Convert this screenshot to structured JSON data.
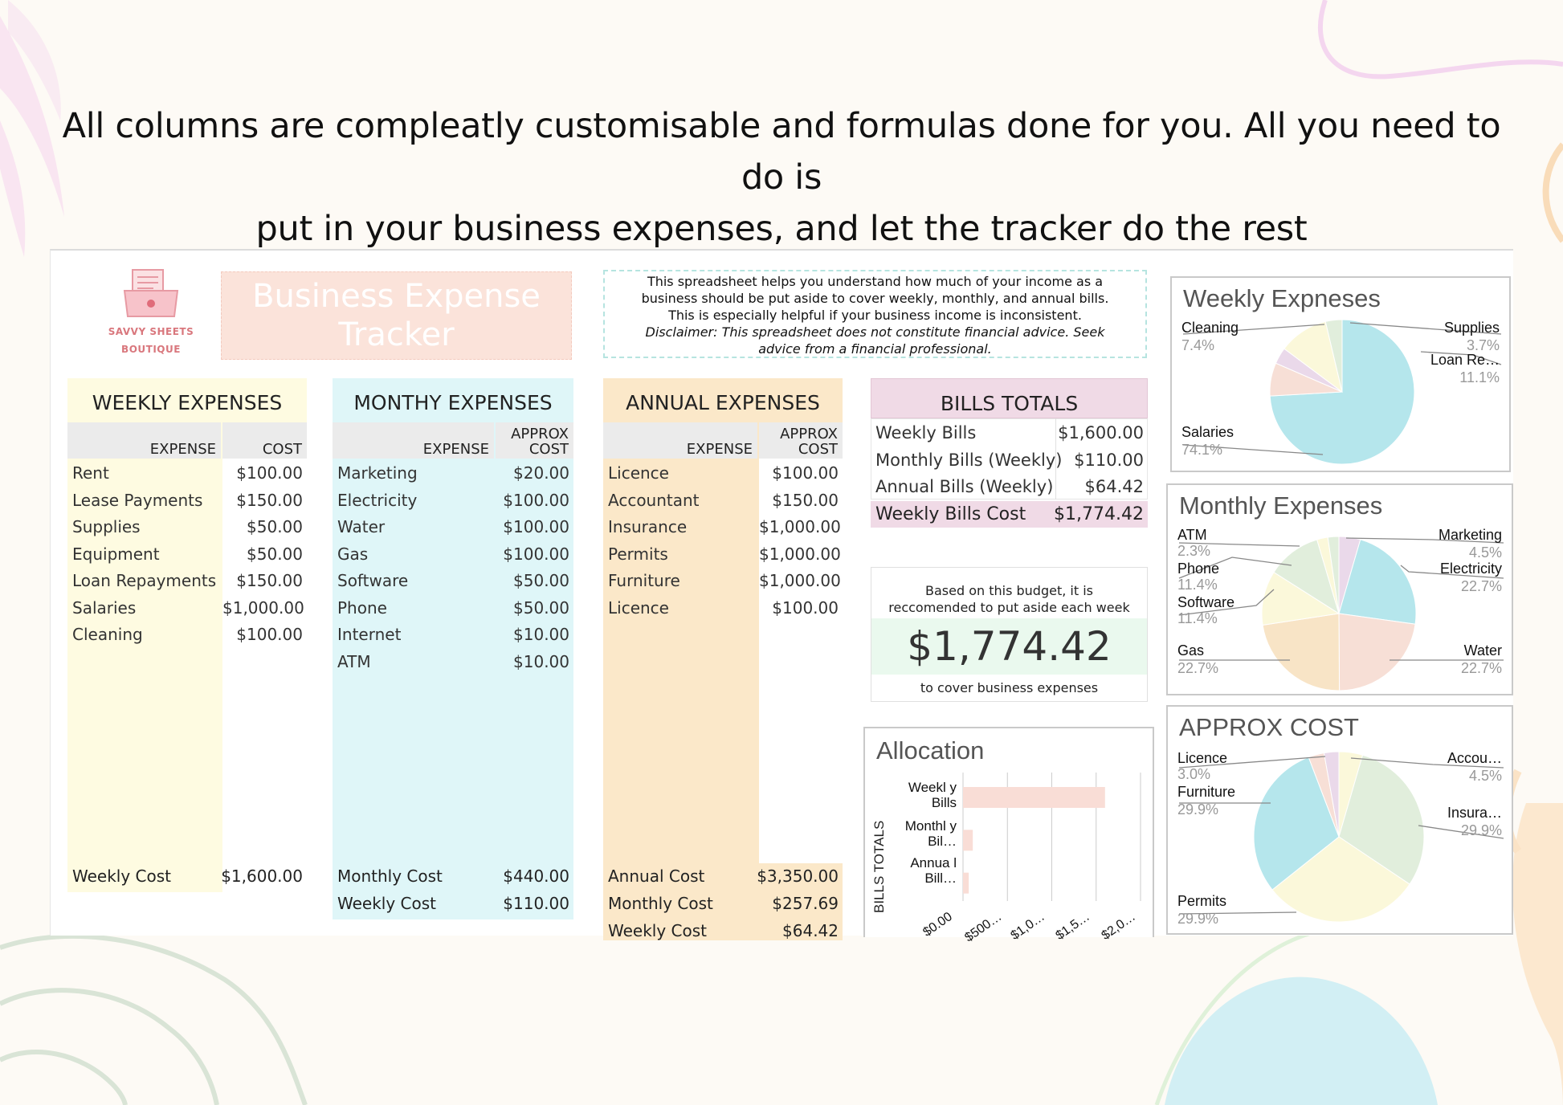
{
  "headline": {
    "line1": "All columns are compleatly customisable and formulas done for you. All you need to do is",
    "line2": "put in your business expenses, and let the tracker do the rest"
  },
  "logo": {
    "line1": "SAVVY SHEETS",
    "line2": "BOUTIQUE"
  },
  "title": {
    "line1": "Business Expense",
    "line2": "Tracker"
  },
  "info": {
    "line1": "This spreadsheet helps you understand how much of your income as a",
    "line2": "business should be put aside to cover weekly, monthly, and annual bills.",
    "line3": "This is especially helpful if your business income is inconsistent.",
    "line4": "Disclaimer: This spreadsheet does not constitute financial advice. Seek",
    "line5": "advice from a financial professional."
  },
  "weekly": {
    "heading": "WEEKLY EXPENSES",
    "col_expense": "EXPENSE",
    "col_cost": "COST",
    "rows": [
      {
        "name": "Rent",
        "cost": "$100.00"
      },
      {
        "name": "Lease Payments",
        "cost": "$150.00"
      },
      {
        "name": "Supplies",
        "cost": "$50.00"
      },
      {
        "name": "Equipment",
        "cost": "$50.00"
      },
      {
        "name": "Loan Repayments",
        "cost": "$150.00"
      },
      {
        "name": "Salaries",
        "cost": "$1,000.00"
      },
      {
        "name": "Cleaning",
        "cost": "$100.00"
      }
    ],
    "total_label": "Weekly Cost",
    "total_value": "$1,600.00",
    "color": "#fefbe1"
  },
  "monthly": {
    "heading": "MONTHY EXPENSES",
    "col_expense": "EXPENSE",
    "col_cost_1": "APPROX",
    "col_cost_2": "COST",
    "rows": [
      {
        "name": "Marketing",
        "cost": "$20.00"
      },
      {
        "name": "Electricity",
        "cost": "$100.00"
      },
      {
        "name": "Water",
        "cost": "$100.00"
      },
      {
        "name": "Gas",
        "cost": "$100.00"
      },
      {
        "name": "Software",
        "cost": "$50.00"
      },
      {
        "name": "Phone",
        "cost": "$50.00"
      },
      {
        "name": "Internet",
        "cost": "$10.00"
      },
      {
        "name": "ATM",
        "cost": "$10.00"
      }
    ],
    "total_label": "Monthly Cost",
    "total_value": "$440.00",
    "weekly_label": "Weekly Cost",
    "weekly_value": "$110.00",
    "color": "#dff6f8"
  },
  "annual": {
    "heading": "ANNUAL EXPENSES",
    "col_expense": "EXPENSE",
    "col_cost_1": "APPROX",
    "col_cost_2": "COST",
    "rows": [
      {
        "name": "Licence",
        "cost": "$100.00"
      },
      {
        "name": "Accountant",
        "cost": "$150.00"
      },
      {
        "name": "Insurance",
        "cost": "$1,000.00"
      },
      {
        "name": "Permits",
        "cost": "$1,000.00"
      },
      {
        "name": "Furniture",
        "cost": "$1,000.00"
      },
      {
        "name": "Licence",
        "cost": "$100.00"
      }
    ],
    "total_label": "Annual Cost",
    "total_value": "$3,350.00",
    "monthly_label": "Monthly Cost",
    "monthly_value": "$257.69",
    "weekly_label": "Weekly Cost",
    "weekly_value": "$64.42",
    "color": "#fbe8c9"
  },
  "bills": {
    "heading": "BILLS TOTALS",
    "rows": [
      {
        "name": "Weekly Bills",
        "value": "$1,600.00"
      },
      {
        "name": "Monthly Bills (Weekly)",
        "value": "$110.00"
      },
      {
        "name": "Annual Bills (Weekly)",
        "value": "$64.42"
      }
    ],
    "total_label": "Weekly Bills Cost",
    "total_value": "$1,774.42"
  },
  "budget": {
    "line1": "Based on this budget, it is",
    "line2": "reccomended to put aside each week",
    "amount": "$1,774.42",
    "line3": "to cover business expenses"
  },
  "chart_data": [
    {
      "type": "bar",
      "title": "Allocation",
      "ylabel": "BILLS TOTALS",
      "categories": [
        "Weekl y Bills",
        "Monthl y Bil…",
        "Annua l Bill…"
      ],
      "values": [
        1600,
        110,
        64.42
      ],
      "xlim": [
        0,
        2000
      ],
      "ticks": [
        "$0.00",
        "$500…",
        "$1,0…",
        "$1,5…",
        "$2,0…"
      ],
      "color": "#f9ddd6",
      "grid": true
    },
    {
      "type": "pie",
      "title": "Weekly Expneses",
      "slices": [
        {
          "label": "Salaries",
          "pct": "74.1%",
          "value": 74.1,
          "color": "#b5e6ec"
        },
        {
          "label": "Cleaning",
          "pct": "7.4%",
          "value": 7.4,
          "color": "#f7dfd6"
        },
        {
          "label": "Supplies",
          "pct": "3.7%",
          "value": 3.7,
          "color": "#ead9ea"
        },
        {
          "label": "Loan Re…",
          "pct": "11.1%",
          "value": 11.1,
          "color": "#fbf8da"
        },
        {
          "label": "",
          "pct": "",
          "value": 3.7,
          "color": "#e1eedc"
        }
      ]
    },
    {
      "type": "pie",
      "title": "Monthly Expenses",
      "slices": [
        {
          "label": "Marketing",
          "pct": "4.5%",
          "value": 4.5,
          "color": "#ead9ea"
        },
        {
          "label": "Electricity",
          "pct": "22.7%",
          "value": 22.7,
          "color": "#b5e6ec"
        },
        {
          "label": "Water",
          "pct": "22.7%",
          "value": 22.7,
          "color": "#f7dfd6"
        },
        {
          "label": "Gas",
          "pct": "22.7%",
          "value": 22.7,
          "color": "#f8e4c6"
        },
        {
          "label": "Software",
          "pct": "11.4%",
          "value": 11.4,
          "color": "#fbf8da"
        },
        {
          "label": "Phone",
          "pct": "11.4%",
          "value": 11.4,
          "color": "#e1eedc"
        },
        {
          "label": "ATM",
          "pct": "2.3%",
          "value": 2.3,
          "color": "#fbf8da"
        },
        {
          "label": "",
          "pct": "",
          "value": 2.3,
          "color": "#e1eedc"
        }
      ]
    },
    {
      "type": "pie",
      "title": "APPROX COST",
      "slices": [
        {
          "label": "Accou…",
          "pct": "4.5%",
          "value": 4.5,
          "color": "#fbf8da"
        },
        {
          "label": "Insura…",
          "pct": "29.9%",
          "value": 29.9,
          "color": "#e1eedc"
        },
        {
          "label": "Permits",
          "pct": "29.9%",
          "value": 29.9,
          "color": "#fbf8da"
        },
        {
          "label": "Furniture",
          "pct": "29.9%",
          "value": 29.9,
          "color": "#b5e6ec"
        },
        {
          "label": "Licence",
          "pct": "3.0%",
          "value": 3.0,
          "color": "#f7dfd6"
        },
        {
          "label": "",
          "pct": "",
          "value": 2.8,
          "color": "#ead9ea"
        }
      ]
    }
  ]
}
